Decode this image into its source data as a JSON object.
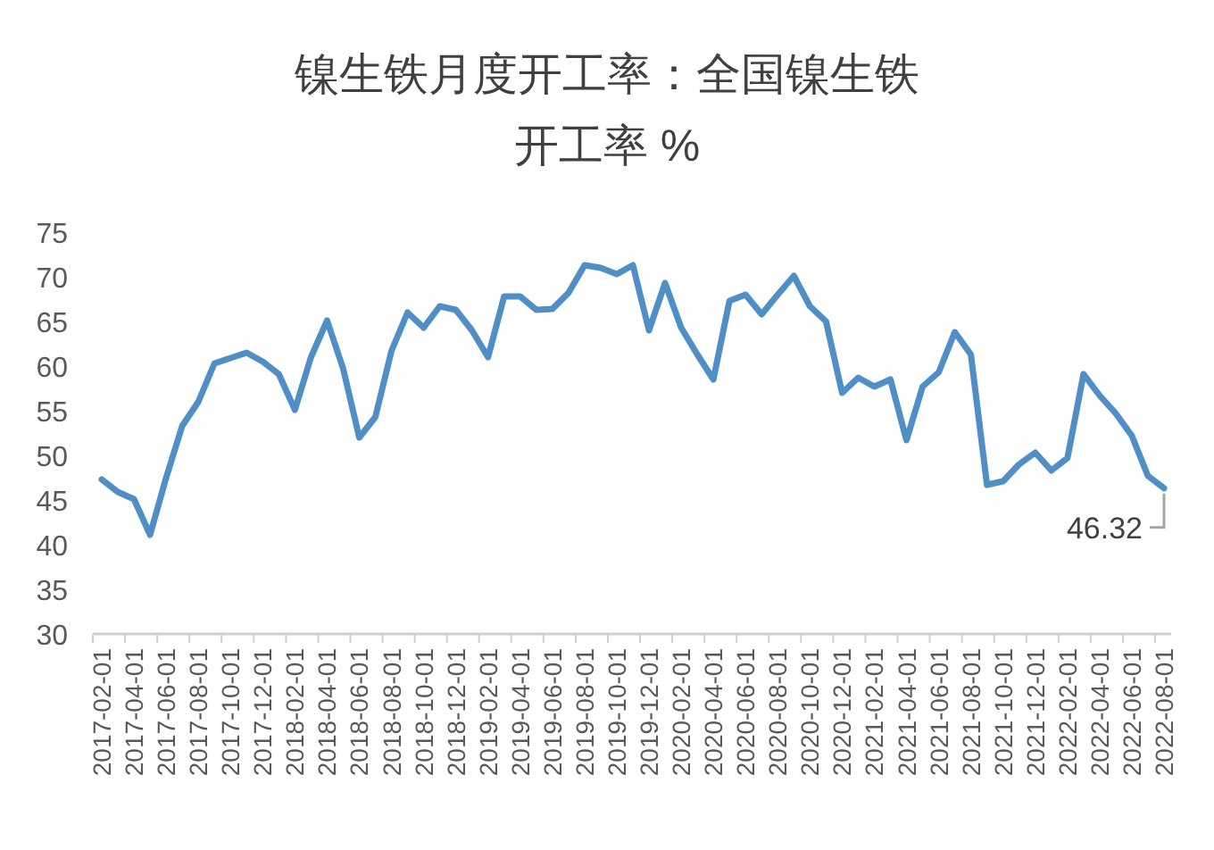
{
  "chart_data": {
    "type": "line",
    "title": "镍生铁月度开工率：全国镍生铁",
    "subtitle": "开工率 %",
    "categories": [
      "2017-02-01",
      null,
      "2017-04-01",
      null,
      "2017-06-01",
      null,
      "2017-08-01",
      null,
      "2017-10-01",
      null,
      "2017-12-01",
      null,
      "2018-02-01",
      null,
      "2018-04-01",
      null,
      "2018-06-01",
      null,
      "2018-08-01",
      null,
      "2018-10-01",
      null,
      "2018-12-01",
      null,
      "2019-02-01",
      null,
      "2019-04-01",
      null,
      "2019-06-01",
      null,
      "2019-08-01",
      null,
      "2019-10-01",
      null,
      "2019-12-01",
      null,
      "2020-02-01",
      null,
      "2020-04-01",
      null,
      "2020-06-01",
      null,
      "2020-08-01",
      null,
      "2020-10-01",
      null,
      "2020-12-01",
      null,
      "2021-02-01",
      null,
      "2021-04-01",
      null,
      "2021-06-01",
      null,
      "2021-08-01",
      null,
      "2021-10-01",
      null,
      "2021-12-01",
      null,
      "2022-02-01",
      null,
      "2022-04-01",
      null,
      "2022-06-01",
      null,
      "2022-08-01"
    ],
    "values": [
      47.3,
      45.9,
      45.1,
      41.1,
      47.5,
      53.3,
      56,
      60.3,
      60.9,
      61.5,
      60.5,
      59.1,
      55.1,
      61,
      65.1,
      59.7,
      52,
      54.3,
      61.7,
      66,
      64.3,
      66.7,
      66.3,
      64,
      61,
      67.8,
      67.8,
      66.3,
      66.4,
      68.2,
      71.3,
      71,
      70.3,
      71.3,
      64,
      69.3,
      64.3,
      61.3,
      58.5,
      67.3,
      68,
      65.8,
      68,
      70.1,
      66.7,
      65,
      57,
      58.7,
      57.7,
      58.5,
      51.7,
      57.7,
      59.3,
      63.8,
      61.3,
      46.7,
      47.1,
      49,
      50.3,
      48.3,
      49.7,
      59.1,
      56.7,
      54.7,
      52.2,
      47.7,
      46.32
    ],
    "value_labels": [
      null,
      null,
      null,
      null,
      null,
      null,
      null,
      null,
      null,
      null,
      null,
      null,
      null,
      null,
      null,
      null,
      null,
      null,
      null,
      null,
      null,
      null,
      null,
      null,
      null,
      null,
      null,
      null,
      null,
      null,
      null,
      null,
      null,
      null,
      null,
      null,
      null,
      null,
      null,
      null,
      null,
      null,
      null,
      null,
      null,
      null,
      null,
      null,
      null,
      null,
      null,
      null,
      null,
      null,
      null,
      null,
      null,
      null,
      null,
      null,
      null,
      null,
      null,
      null,
      null,
      null,
      "46.32"
    ],
    "color": "#4f8fc6",
    "ylim": [
      30,
      75
    ],
    "yticks": [
      30,
      35,
      40,
      45,
      50,
      55,
      60,
      65,
      70,
      75
    ],
    "grid": false,
    "marker": "none",
    "line_style": "solid"
  }
}
